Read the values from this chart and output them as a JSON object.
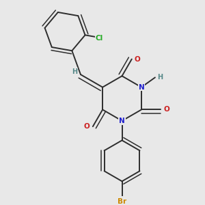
{
  "bg_color": "#e8e8e8",
  "bond_color": "#2d2d2d",
  "N_color": "#2020cc",
  "O_color": "#cc2020",
  "Cl_color": "#22aa22",
  "Br_color": "#cc8800",
  "H_color": "#558888",
  "xlim": [
    0.0,
    1.0
  ],
  "ylim": [
    0.0,
    1.0
  ]
}
